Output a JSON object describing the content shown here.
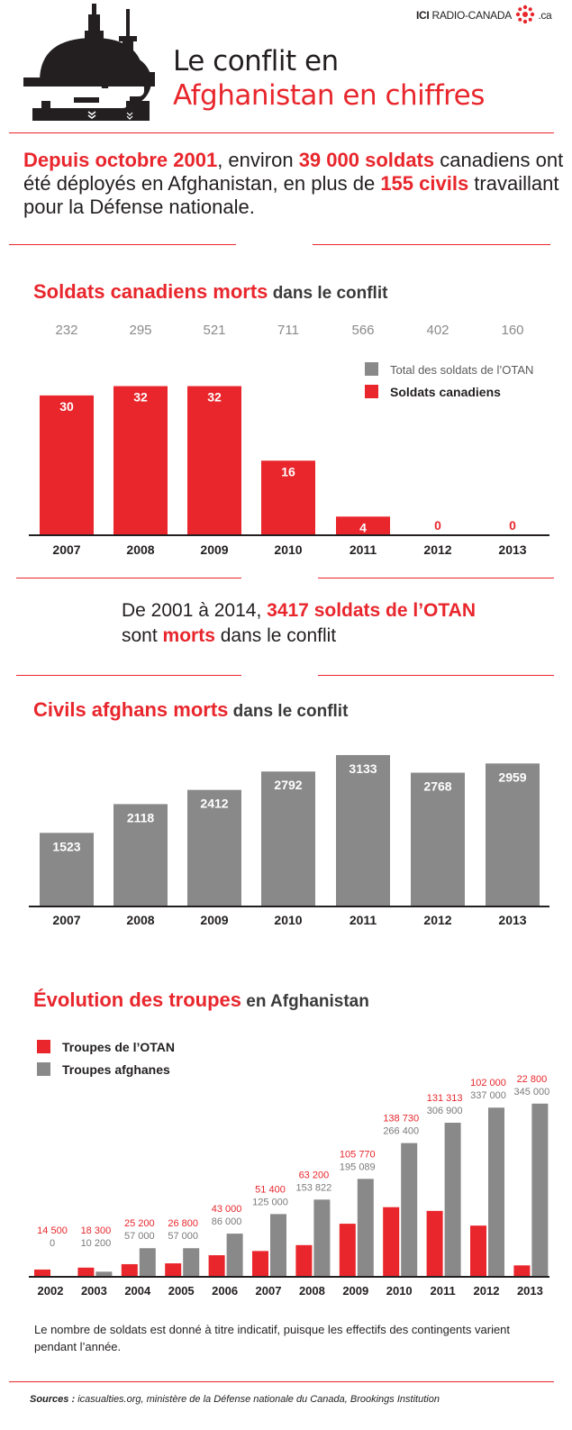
{
  "brand": {
    "ici": "ICI",
    "name": "RADIO-CANADA",
    "suffix": ".ca"
  },
  "header": {
    "title_line1": "Le conflit en",
    "title_line2": "Afghanistan en chiffres"
  },
  "intro": {
    "p1": "Depuis octobre 2001",
    "p2": ", environ ",
    "p3": "39 000 soldats",
    "p4": " canadiens ont été déployés en Afghanistan, en plus de ",
    "p5": "155 civils",
    "p6": " travaillant pour la Défense nationale."
  },
  "section1": {
    "title": "Soldats canadiens morts",
    "subtitle": " dans le conflit"
  },
  "nato_band": {
    "p1": "De 2001 à 2014, ",
    "p2": "3417 soldats de l’OTAN",
    "p3": "sont ",
    "p4": "morts",
    "p5": " dans le conflit"
  },
  "section2": {
    "title": "Civils afghans morts",
    "subtitle": " dans le conflit"
  },
  "section3": {
    "title": "Évolution des troupes",
    "subtitle": " en Afghanistan"
  },
  "footnote": "Le nombre de soldats est donné à titre indicatif, puisque les effectifs des contingents varient pendant l’année.",
  "sources": {
    "label": "Sources :",
    "text": " icasualties.org, ministère de la Défense nationale du Canada, Brookings Institution"
  },
  "colors": {
    "red": "#e8262c",
    "gray": "#898989",
    "dark": "#231f20"
  },
  "chart_data": [
    {
      "type": "bar",
      "title": "Soldats canadiens morts dans le conflit",
      "categories": [
        "2007",
        "2008",
        "2009",
        "2010",
        "2011",
        "2012",
        "2013"
      ],
      "series": [
        {
          "name": "Soldats canadiens",
          "values": [
            30,
            32,
            32,
            16,
            4,
            0,
            0
          ]
        },
        {
          "name": "Total des soldats de l’OTAN",
          "values": [
            232,
            295,
            521,
            711,
            566,
            402,
            160
          ]
        }
      ],
      "legend": "top-right",
      "ylim": [
        0,
        35
      ]
    },
    {
      "type": "bar",
      "title": "Civils afghans morts dans le conflit",
      "categories": [
        "2007",
        "2008",
        "2009",
        "2010",
        "2011",
        "2012",
        "2013"
      ],
      "values": [
        1523,
        2118,
        2412,
        2792,
        3133,
        2768,
        2959
      ],
      "ylim": [
        0,
        3300
      ]
    },
    {
      "type": "bar",
      "title": "Évolution des troupes en Afghanistan",
      "categories": [
        "2002",
        "2003",
        "2004",
        "2005",
        "2006",
        "2007",
        "2008",
        "2009",
        "2010",
        "2011",
        "2012",
        "2013"
      ],
      "series": [
        {
          "name": "Troupes de l’OTAN",
          "values": [
            14500,
            18300,
            25200,
            26800,
            43000,
            51400,
            63200,
            105770,
            138730,
            131313,
            102000,
            22800
          ],
          "labels": [
            "14 500",
            "18 300",
            "25 200",
            "26 800",
            "43 000",
            "51 400",
            "63 200",
            "105 770",
            "138 730",
            "131 313",
            "102 000",
            "22 800"
          ]
        },
        {
          "name": "Troupes afghanes",
          "values": [
            0,
            10200,
            57000,
            57000,
            86000,
            125000,
            153822,
            195089,
            266400,
            306900,
            337000,
            345000
          ],
          "labels": [
            "0",
            "10 200",
            "57 000",
            "57 000",
            "86 000",
            "125 000",
            "153 822",
            "195 089",
            "266 400",
            "306 900",
            "337 000",
            "345 000"
          ]
        }
      ],
      "legend": "top-left",
      "ylim": [
        0,
        350000
      ]
    }
  ]
}
